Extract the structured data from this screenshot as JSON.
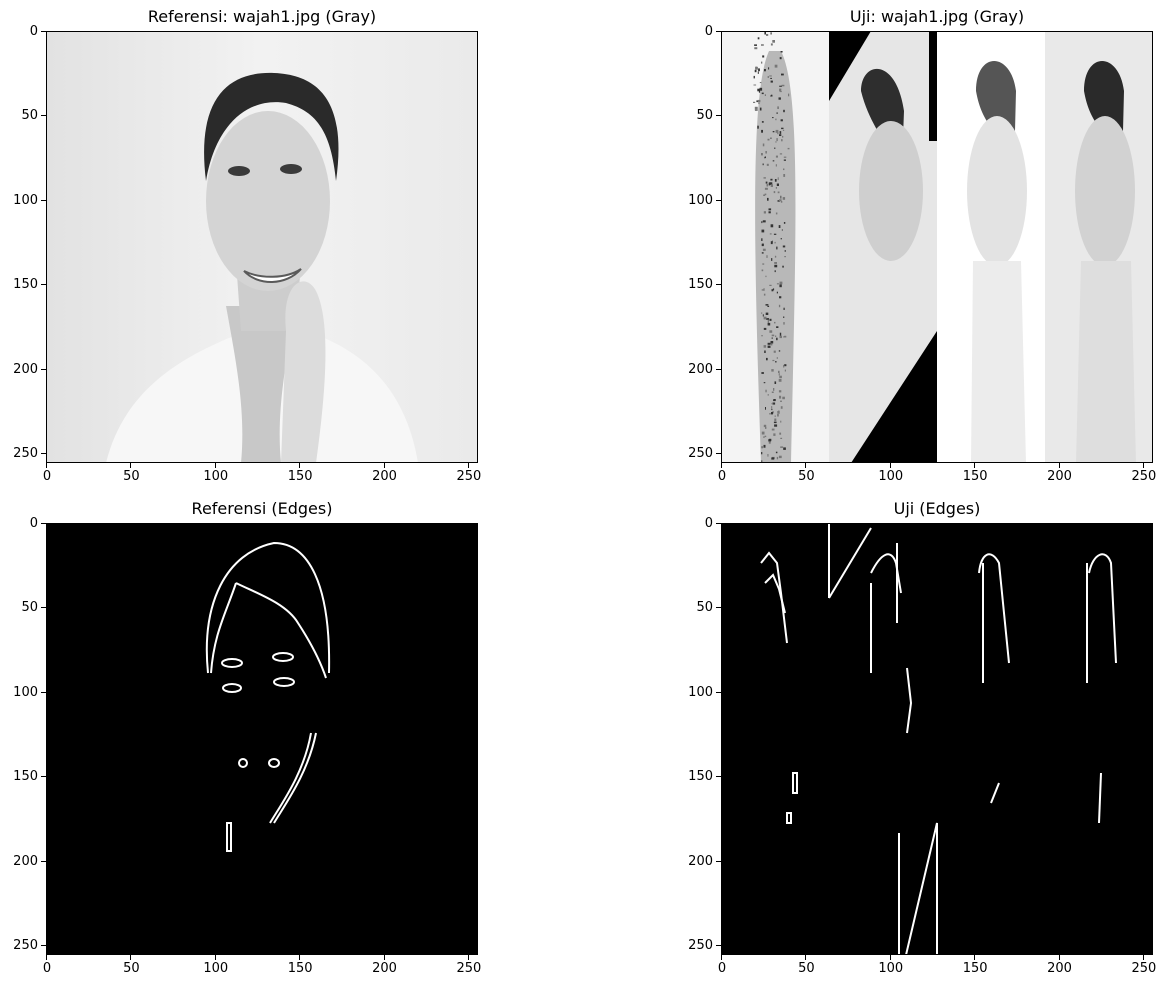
{
  "chart_data": [
    {
      "type": "image",
      "title": "Referensi: wajah1.jpg (Gray)",
      "image_kind": "grayscale-photo",
      "subject": "woman portrait",
      "xlim": [
        0,
        256
      ],
      "ylim": [
        256,
        0
      ],
      "xticks": [
        0,
        50,
        100,
        150,
        200,
        250
      ],
      "yticks": [
        0,
        50,
        100,
        150,
        200,
        250
      ]
    },
    {
      "type": "image",
      "title": "Uji: wajah1.jpg (Gray)",
      "image_kind": "grayscale-photo-montage",
      "strips": [
        {
          "x_range": [
            0,
            64
          ],
          "variant": "noise"
        },
        {
          "x_range": [
            64,
            128
          ],
          "variant": "rotated"
        },
        {
          "x_range": [
            128,
            192
          ],
          "variant": "bright"
        },
        {
          "x_range": [
            192,
            256
          ],
          "variant": "original"
        }
      ],
      "xlim": [
        0,
        256
      ],
      "ylim": [
        256,
        0
      ],
      "xticks": [
        0,
        50,
        100,
        150,
        200,
        250
      ],
      "yticks": [
        0,
        50,
        100,
        150,
        200,
        250
      ]
    },
    {
      "type": "image",
      "title": "Referensi (Edges)",
      "image_kind": "edge-map",
      "xlim": [
        0,
        256
      ],
      "ylim": [
        256,
        0
      ],
      "xticks": [
        0,
        50,
        100,
        150,
        200,
        250
      ],
      "yticks": [
        0,
        50,
        100,
        150,
        200,
        250
      ]
    },
    {
      "type": "image",
      "title": "Uji (Edges)",
      "image_kind": "edge-map-montage",
      "xlim": [
        0,
        256
      ],
      "ylim": [
        256,
        0
      ],
      "xticks": [
        0,
        50,
        100,
        150,
        200,
        250
      ],
      "yticks": [
        0,
        50,
        100,
        150,
        200,
        250
      ]
    }
  ]
}
